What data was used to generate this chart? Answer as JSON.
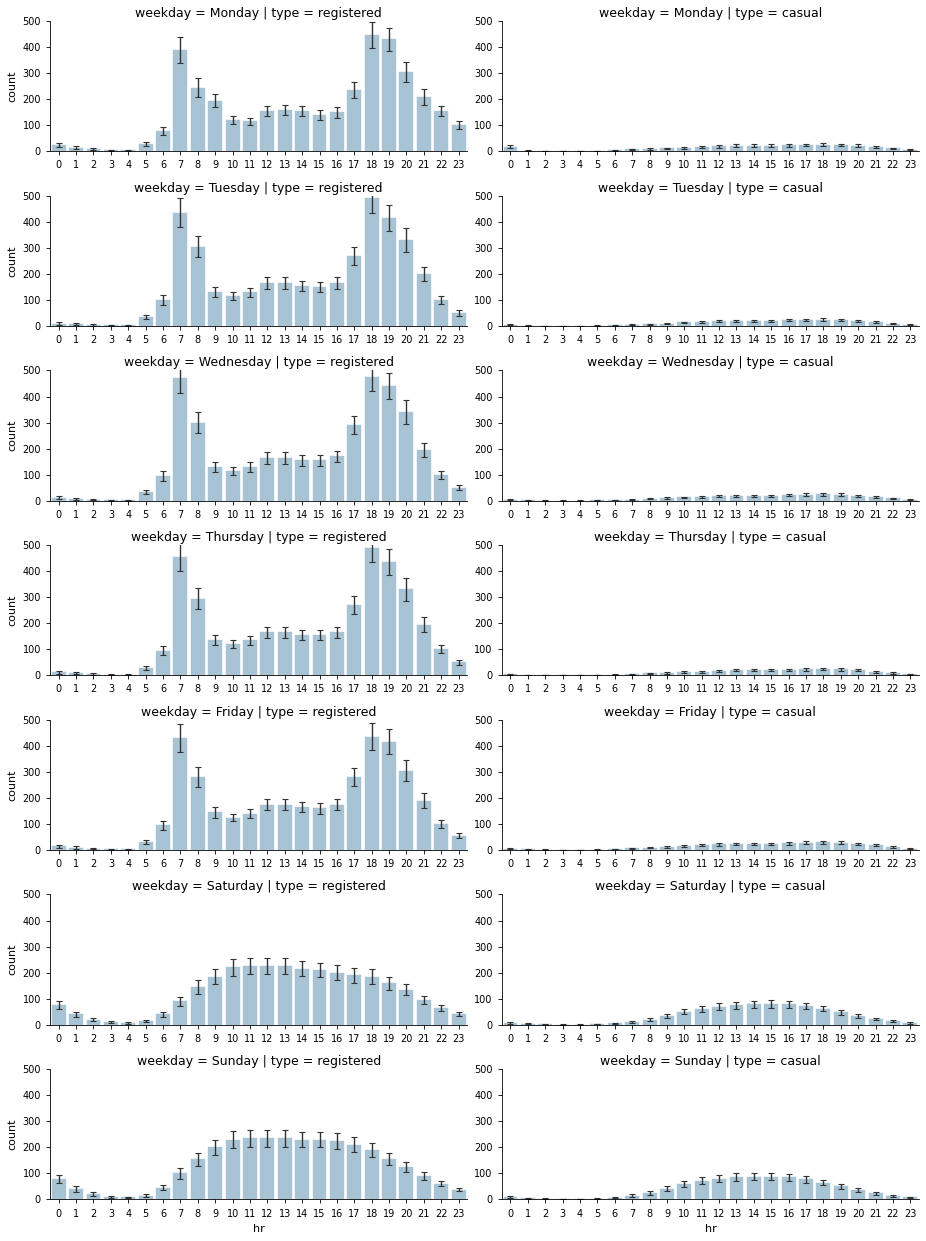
{
  "weekdays": [
    "Monday",
    "Tuesday",
    "Wednesday",
    "Thursday",
    "Friday",
    "Saturday",
    "Sunday"
  ],
  "hours": [
    0,
    1,
    2,
    3,
    4,
    5,
    6,
    7,
    8,
    9,
    10,
    11,
    12,
    13,
    14,
    15,
    16,
    17,
    18,
    19,
    20,
    21,
    22,
    23
  ],
  "bar_color": "#a8c4d4",
  "bar_edgecolor": "#a8c4d4",
  "errorbar_color": "#333333",
  "registered": {
    "Monday": [
      25,
      15,
      10,
      5,
      5,
      30,
      80,
      390,
      245,
      195,
      120,
      115,
      155,
      160,
      155,
      140,
      150,
      235,
      445,
      430,
      305,
      210,
      155,
      100
    ],
    "Tuesday": [
      10,
      8,
      5,
      3,
      3,
      35,
      100,
      435,
      305,
      130,
      115,
      130,
      165,
      165,
      155,
      150,
      165,
      270,
      490,
      415,
      330,
      200,
      100,
      50
    ],
    "Wednesday": [
      12,
      8,
      5,
      3,
      3,
      35,
      95,
      470,
      300,
      130,
      115,
      130,
      165,
      165,
      155,
      155,
      170,
      290,
      475,
      440,
      340,
      195,
      100,
      50
    ],
    "Thursday": [
      12,
      8,
      5,
      3,
      3,
      30,
      95,
      455,
      295,
      135,
      120,
      135,
      165,
      165,
      155,
      155,
      165,
      270,
      490,
      435,
      330,
      195,
      100,
      50
    ],
    "Friday": [
      15,
      10,
      6,
      3,
      3,
      30,
      95,
      430,
      280,
      145,
      125,
      140,
      175,
      175,
      165,
      160,
      175,
      280,
      435,
      415,
      305,
      190,
      100,
      55
    ],
    "Saturday": [
      75,
      40,
      20,
      10,
      8,
      15,
      40,
      90,
      145,
      185,
      220,
      225,
      225,
      225,
      215,
      210,
      200,
      190,
      185,
      160,
      135,
      95,
      65,
      40
    ],
    "Sunday": [
      80,
      40,
      20,
      10,
      8,
      15,
      45,
      100,
      155,
      200,
      230,
      235,
      235,
      235,
      230,
      230,
      225,
      210,
      190,
      155,
      125,
      90,
      60,
      38
    ]
  },
  "registered_err": {
    "Monday": [
      8,
      5,
      4,
      2,
      2,
      8,
      15,
      50,
      35,
      25,
      15,
      15,
      20,
      20,
      20,
      18,
      20,
      30,
      50,
      45,
      40,
      30,
      20,
      15
    ],
    "Tuesday": [
      5,
      4,
      3,
      2,
      2,
      8,
      18,
      55,
      40,
      20,
      15,
      18,
      22,
      22,
      20,
      20,
      22,
      35,
      55,
      50,
      45,
      28,
      15,
      10
    ],
    "Wednesday": [
      5,
      4,
      3,
      2,
      2,
      8,
      18,
      55,
      40,
      20,
      15,
      18,
      22,
      22,
      20,
      20,
      22,
      35,
      55,
      50,
      45,
      28,
      15,
      10
    ],
    "Thursday": [
      5,
      4,
      3,
      2,
      2,
      8,
      18,
      55,
      40,
      20,
      15,
      18,
      22,
      22,
      20,
      20,
      22,
      35,
      55,
      50,
      45,
      28,
      15,
      10
    ],
    "Friday": [
      6,
      4,
      3,
      2,
      2,
      8,
      18,
      52,
      38,
      22,
      15,
      18,
      22,
      22,
      20,
      20,
      22,
      35,
      52,
      48,
      40,
      28,
      15,
      10
    ],
    "Saturday": [
      15,
      10,
      7,
      4,
      3,
      5,
      10,
      18,
      25,
      30,
      32,
      32,
      32,
      30,
      28,
      28,
      28,
      28,
      28,
      25,
      20,
      15,
      12,
      8
    ],
    "Sunday": [
      15,
      10,
      7,
      4,
      3,
      5,
      10,
      20,
      25,
      30,
      32,
      32,
      32,
      32,
      30,
      30,
      30,
      28,
      28,
      22,
      18,
      14,
      10,
      7
    ]
  },
  "casual": {
    "Monday": [
      18,
      3,
      2,
      1,
      1,
      2,
      4,
      8,
      10,
      12,
      15,
      17,
      20,
      22,
      22,
      22,
      24,
      25,
      26,
      25,
      22,
      18,
      12,
      6
    ],
    "Tuesday": [
      5,
      2,
      1,
      1,
      1,
      2,
      3,
      6,
      8,
      10,
      14,
      16,
      18,
      20,
      20,
      20,
      22,
      24,
      25,
      24,
      20,
      15,
      10,
      5
    ],
    "Wednesday": [
      4,
      2,
      1,
      1,
      1,
      2,
      3,
      5,
      8,
      10,
      13,
      15,
      18,
      20,
      20,
      20,
      22,
      24,
      25,
      24,
      20,
      14,
      9,
      4
    ],
    "Thursday": [
      4,
      2,
      1,
      1,
      1,
      2,
      3,
      5,
      8,
      10,
      13,
      15,
      18,
      20,
      20,
      20,
      22,
      24,
      25,
      24,
      20,
      14,
      9,
      4
    ],
    "Friday": [
      6,
      3,
      2,
      1,
      1,
      2,
      4,
      7,
      10,
      13,
      16,
      18,
      22,
      24,
      24,
      24,
      26,
      28,
      30,
      28,
      24,
      18,
      12,
      6
    ],
    "Saturday": [
      8,
      4,
      2,
      1,
      1,
      3,
      6,
      12,
      20,
      35,
      50,
      62,
      70,
      75,
      78,
      80,
      78,
      72,
      62,
      48,
      35,
      22,
      14,
      7
    ],
    "Sunday": [
      10,
      5,
      3,
      1,
      1,
      3,
      7,
      15,
      25,
      42,
      58,
      72,
      80,
      85,
      88,
      88,
      85,
      78,
      65,
      50,
      36,
      24,
      15,
      8
    ]
  },
  "casual_err": {
    "Monday": [
      5,
      1,
      1,
      0.5,
      0.5,
      1,
      1,
      2,
      3,
      3,
      4,
      4,
      5,
      5,
      5,
      5,
      5,
      5,
      6,
      5,
      5,
      4,
      3,
      2
    ],
    "Tuesday": [
      2,
      1,
      0.5,
      0.5,
      0.5,
      1,
      1,
      2,
      2,
      3,
      3,
      4,
      4,
      4,
      4,
      4,
      4,
      5,
      5,
      5,
      4,
      4,
      3,
      2
    ],
    "Wednesday": [
      2,
      1,
      0.5,
      0.5,
      0.5,
      1,
      1,
      2,
      2,
      3,
      3,
      4,
      4,
      4,
      4,
      4,
      4,
      5,
      5,
      5,
      4,
      4,
      3,
      2
    ],
    "Thursday": [
      2,
      1,
      0.5,
      0.5,
      0.5,
      1,
      1,
      2,
      2,
      3,
      3,
      4,
      4,
      4,
      4,
      4,
      4,
      5,
      5,
      5,
      4,
      4,
      3,
      2
    ],
    "Friday": [
      2,
      1,
      1,
      0.5,
      0.5,
      1,
      1,
      2,
      3,
      3,
      4,
      4,
      5,
      5,
      5,
      5,
      5,
      6,
      6,
      6,
      5,
      4,
      3,
      2
    ],
    "Saturday": [
      3,
      2,
      1,
      0.5,
      0.5,
      1,
      2,
      4,
      6,
      8,
      10,
      12,
      13,
      14,
      14,
      14,
      13,
      12,
      10,
      9,
      7,
      5,
      4,
      2
    ],
    "Sunday": [
      3,
      2,
      1,
      0.5,
      0.5,
      1,
      2,
      5,
      7,
      9,
      11,
      13,
      14,
      15,
      15,
      15,
      14,
      13,
      11,
      9,
      7,
      5,
      4,
      2
    ]
  },
  "title_fontsize": 9,
  "axis_fontsize": 8,
  "tick_fontsize": 7
}
